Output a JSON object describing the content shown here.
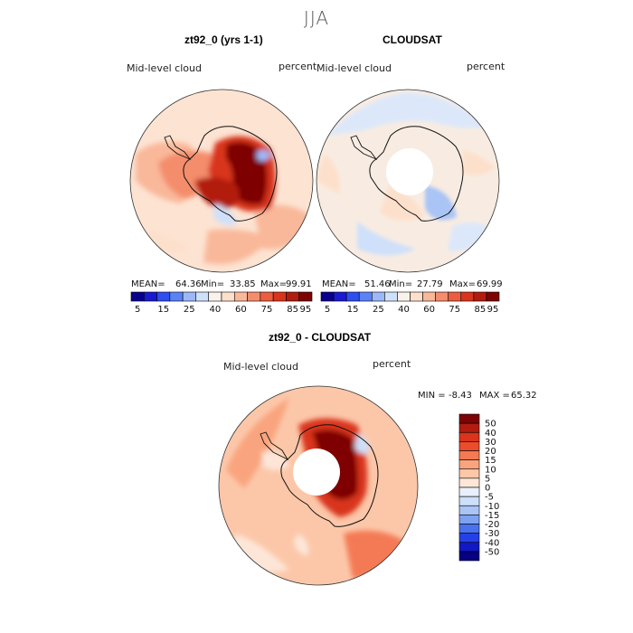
{
  "season": "JJA",
  "panels": [
    {
      "title": "zt92_0 (yrs 1-1)",
      "variable": "Mid-level cloud",
      "units": "percent",
      "mean_label": "MEAN=",
      "mean": "64.36",
      "min_label": "Min=",
      "min": "33.85",
      "max_label": "Max=",
      "max": "99.91"
    },
    {
      "title": "CLOUDSAT",
      "variable": "Mid-level cloud",
      "units": "percent",
      "mean_label": "MEAN=",
      "mean": "51.46",
      "min_label": "Min=",
      "min": "27.79",
      "max_label": "Max=",
      "max": "69.99"
    },
    {
      "title": "zt92_0 - CLOUDSAT",
      "variable": "Mid-level cloud",
      "units": "percent",
      "min_label": "MIN =",
      "min": "-8.43",
      "max_label": "MAX =",
      "max": "65.32"
    }
  ],
  "colorbar_abs": {
    "tick_labels": [
      "5",
      "15",
      "25",
      "40",
      "60",
      "75",
      "85",
      "95"
    ],
    "colors": [
      "#08008c",
      "#1a1ad0",
      "#2e4ef0",
      "#5a82f5",
      "#9cb8f7",
      "#cfe0fa",
      "#f8f2ea",
      "#fde0cc",
      "#f9b89a",
      "#f48d6c",
      "#ec5c3e",
      "#d9341c",
      "#b21c0e",
      "#7e0404"
    ]
  },
  "colorbar_diff": {
    "tick_labels": [
      "50",
      "40",
      "30",
      "20",
      "15",
      "10",
      "5",
      "0",
      "-5",
      "-10",
      "-15",
      "-20",
      "-30",
      "-40",
      "-50"
    ],
    "colors": [
      "#7e0404",
      "#b21c0e",
      "#d9341c",
      "#ec4c2a",
      "#f47a54",
      "#f9a47e",
      "#fcc7a9",
      "#fde6d8",
      "#eaf0fb",
      "#cddff9",
      "#a9c4f5",
      "#7ea2f1",
      "#4a71ee",
      "#2540e6",
      "#1218c4",
      "#070080"
    ]
  },
  "chart_data": [
    {
      "type": "heatmap",
      "title": "zt92_0 (yrs 1-1)",
      "variable": "Mid-level cloud",
      "units": "percent",
      "projection": "south-polar-stereographic",
      "mean": 64.36,
      "min": 33.85,
      "max": 99.91,
      "levels": [
        5,
        15,
        25,
        40,
        60,
        75,
        85,
        95
      ]
    },
    {
      "type": "heatmap",
      "title": "CLOUDSAT",
      "variable": "Mid-level cloud",
      "units": "percent",
      "projection": "south-polar-stereographic",
      "mean": 51.46,
      "min": 27.79,
      "max": 69.99,
      "levels": [
        5,
        15,
        25,
        40,
        60,
        75,
        85,
        95
      ]
    },
    {
      "type": "heatmap",
      "title": "zt92_0 - CLOUDSAT",
      "variable": "Mid-level cloud",
      "units": "percent",
      "projection": "south-polar-stereographic",
      "min": -8.43,
      "max": 65.32,
      "levels": [
        -50,
        -40,
        -30,
        -20,
        -15,
        -10,
        -5,
        0,
        5,
        10,
        15,
        20,
        30,
        40,
        50
      ]
    }
  ]
}
